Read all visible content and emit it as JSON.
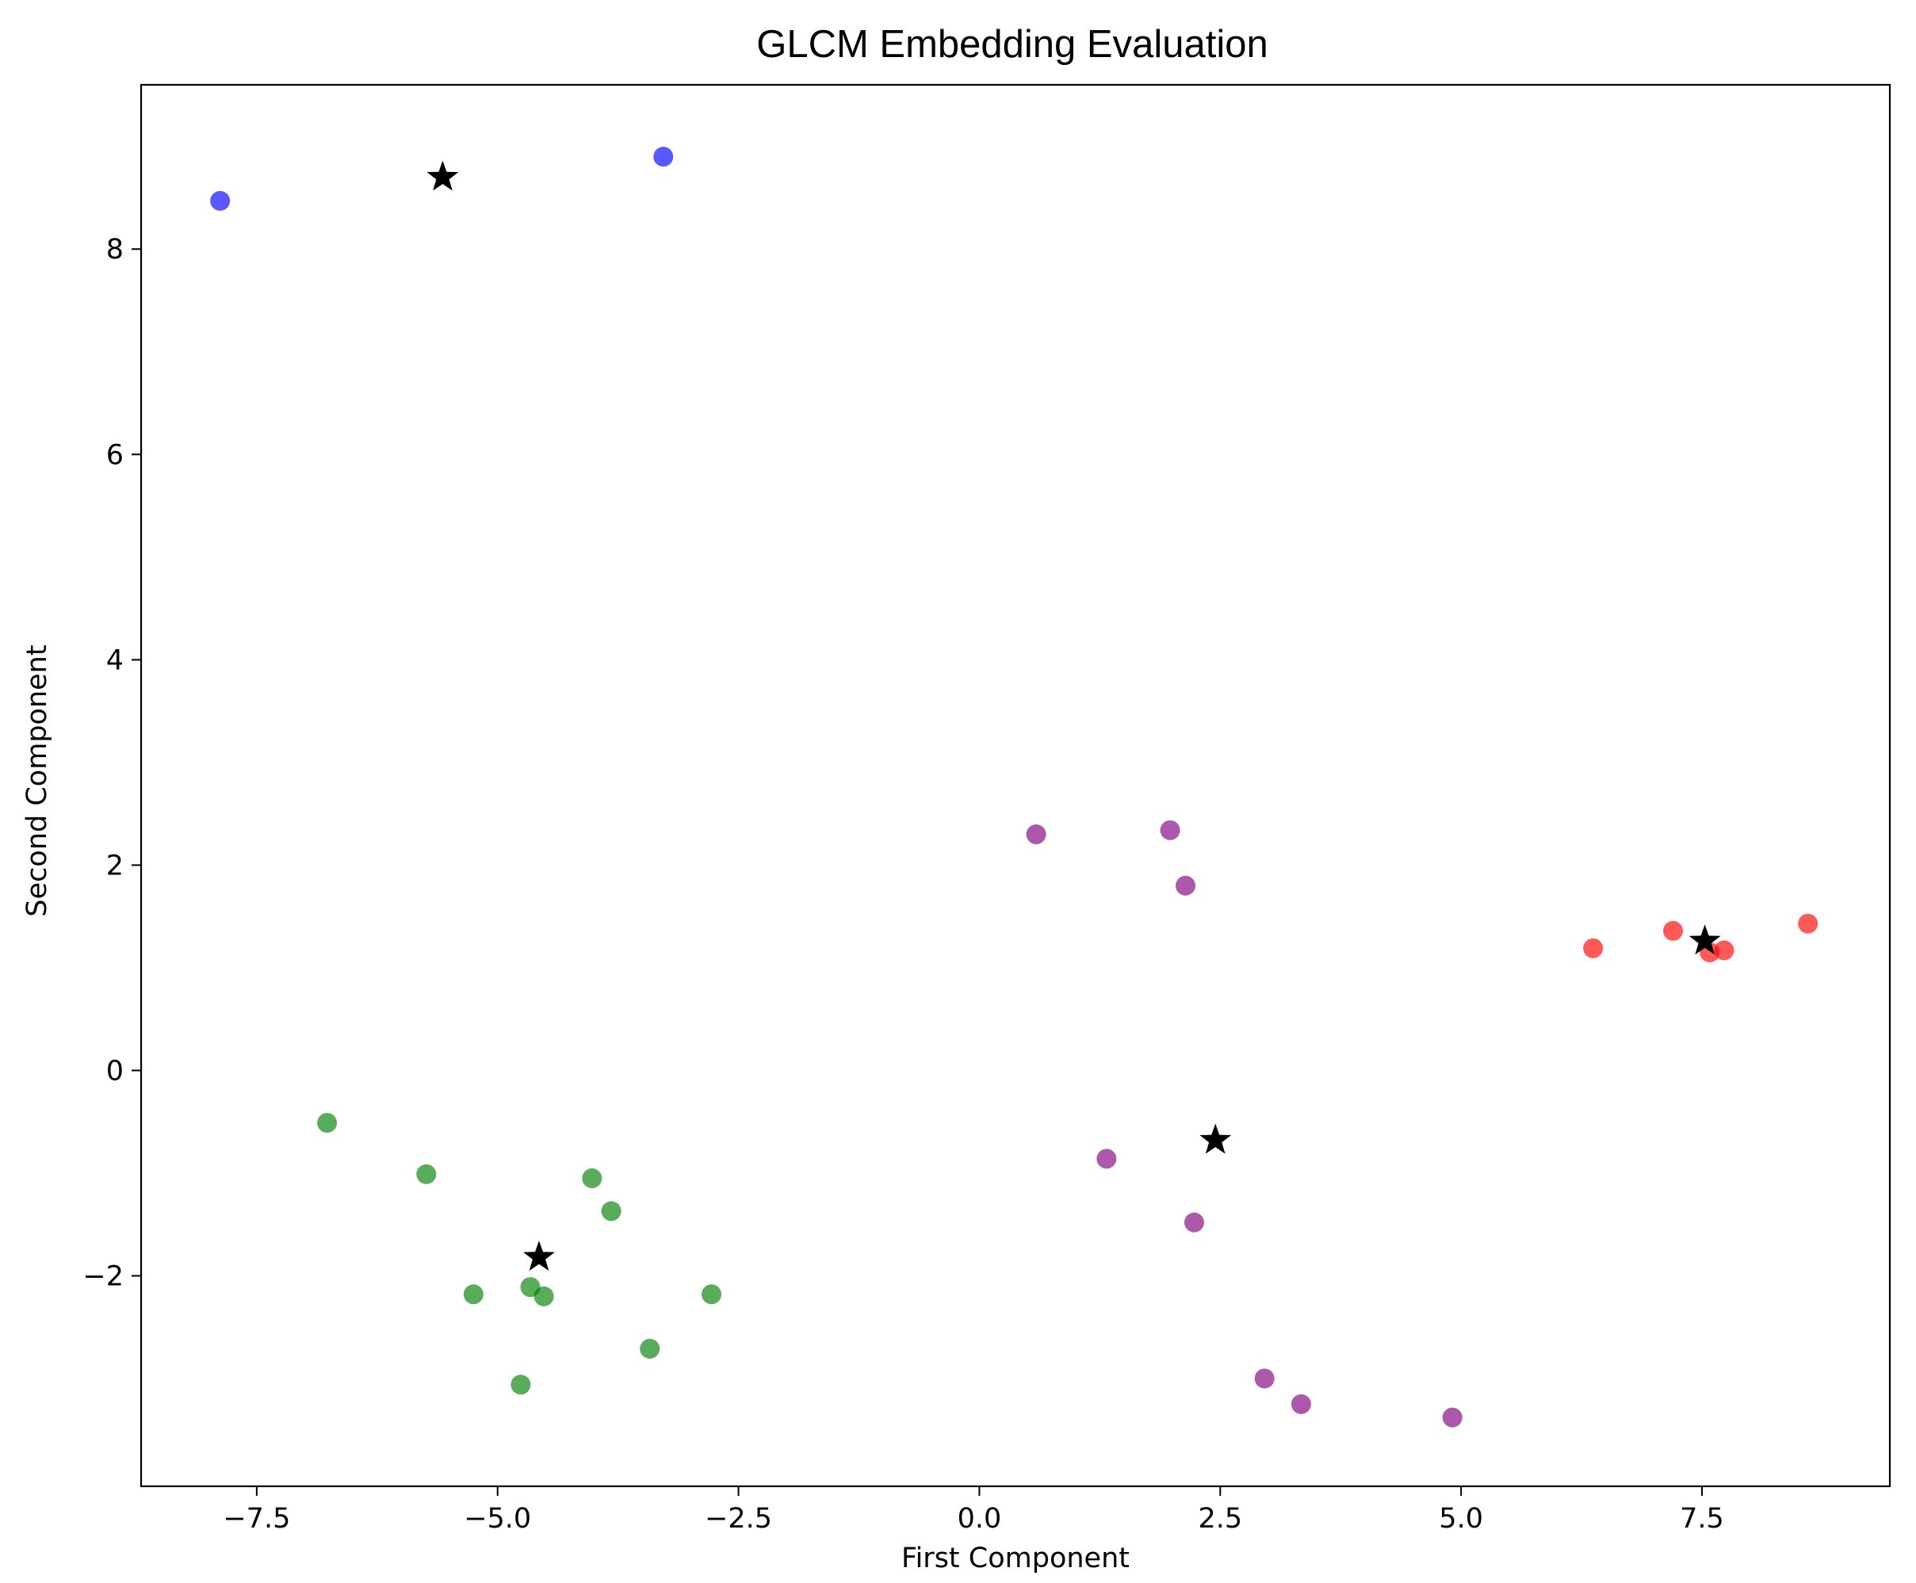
{
  "chart_data": {
    "type": "scatter",
    "title": "GLCM Embedding  Evaluation",
    "xlabel": "First Component",
    "ylabel": "Second Component",
    "xlim": [
      -8.7,
      9.45
    ],
    "ylim": [
      -4.05,
      9.6
    ],
    "x_ticks": [
      -7.5,
      -5.0,
      -2.5,
      0.0,
      2.5,
      5.0,
      7.5
    ],
    "x_tick_labels": [
      "−7.5",
      "−5.0",
      "−2.5",
      "0.0",
      "2.5",
      "5.0",
      "7.5"
    ],
    "y_ticks": [
      -2,
      0,
      2,
      4,
      6,
      8
    ],
    "y_tick_labels": [
      "−2",
      "0",
      "2",
      "4",
      "6",
      "8"
    ],
    "grid": false,
    "series": [
      {
        "color": "#0000ff",
        "marker": "circle",
        "points": [
          [
            -7.88,
            8.47
          ],
          [
            -3.28,
            8.9
          ]
        ]
      },
      {
        "color": "#008000",
        "marker": "circle",
        "points": [
          [
            -6.77,
            -0.51
          ],
          [
            -5.74,
            -1.01
          ],
          [
            -4.02,
            -1.05
          ],
          [
            -3.82,
            -1.37
          ],
          [
            -5.25,
            -2.18
          ],
          [
            -4.66,
            -2.11
          ],
          [
            -4.52,
            -2.2
          ],
          [
            -2.78,
            -2.18
          ],
          [
            -3.42,
            -2.71
          ],
          [
            -4.76,
            -3.06
          ]
        ]
      },
      {
        "color": "#800080",
        "marker": "circle",
        "points": [
          [
            0.59,
            2.3
          ],
          [
            1.98,
            2.34
          ],
          [
            2.14,
            1.8
          ],
          [
            1.32,
            -0.86
          ],
          [
            2.23,
            -1.48
          ],
          [
            2.96,
            -3.0
          ],
          [
            3.34,
            -3.25
          ],
          [
            4.91,
            -3.38
          ]
        ]
      },
      {
        "color": "#ff0000",
        "marker": "circle",
        "points": [
          [
            6.37,
            1.19
          ],
          [
            7.2,
            1.36
          ],
          [
            7.58,
            1.15
          ],
          [
            7.73,
            1.17
          ],
          [
            8.6,
            1.43
          ]
        ]
      },
      {
        "color": "#000000",
        "marker": "star",
        "points": [
          [
            -5.57,
            8.7
          ],
          [
            -4.57,
            -1.82
          ],
          [
            2.45,
            -0.68
          ],
          [
            7.53,
            1.26
          ]
        ]
      }
    ]
  }
}
